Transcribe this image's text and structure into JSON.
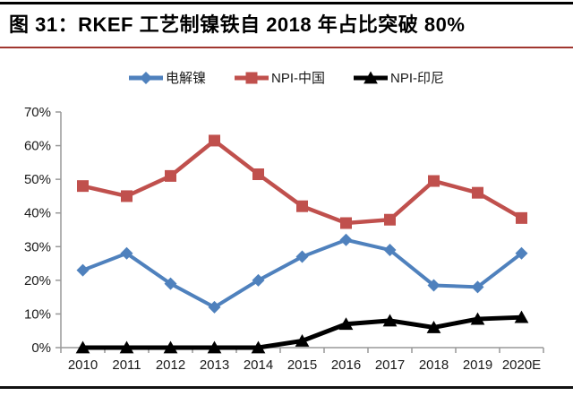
{
  "figure": {
    "title": "图 31：RKEF 工艺制镍铁自 2018 年占比突破 80%"
  },
  "colors": {
    "top_rule": "#000000",
    "title_underline": "#A0362F",
    "bottom_rule": "#111111",
    "axis": "#999999",
    "tick_text": "#1a1a1a"
  },
  "chart_data": {
    "type": "line",
    "title": "",
    "categories": [
      "2010",
      "2011",
      "2012",
      "2013",
      "2014",
      "2015",
      "2016",
      "2017",
      "2018",
      "2019",
      "2020E"
    ],
    "series": [
      {
        "name": "电解镍",
        "color": "#4F81BD",
        "marker": "diamond",
        "line_width": 4,
        "marker_size": 7,
        "values": [
          23,
          28,
          19,
          12,
          20,
          27,
          32,
          29,
          18.5,
          18,
          28
        ]
      },
      {
        "name": "NPI-中国",
        "color": "#C0504D",
        "marker": "square",
        "line_width": 4.5,
        "marker_size": 6.5,
        "values": [
          48,
          45,
          51,
          61.5,
          51.5,
          42,
          37,
          38,
          49.5,
          46,
          38.5
        ]
      },
      {
        "name": "NPI-印尼",
        "color": "#000000",
        "marker": "triangle",
        "line_width": 5,
        "marker_size": 7.5,
        "values": [
          0,
          0,
          0,
          0,
          0,
          2,
          7,
          8,
          6,
          8.5,
          9
        ]
      }
    ],
    "xlabel": "",
    "ylabel": "",
    "ylim": [
      0,
      70
    ],
    "y_tick_step": 10,
    "y_tick_labels": [
      "0%",
      "10%",
      "20%",
      "30%",
      "40%",
      "50%",
      "60%",
      "70%"
    ],
    "unit": "percent",
    "grid": false,
    "legend_position": "top-center"
  }
}
